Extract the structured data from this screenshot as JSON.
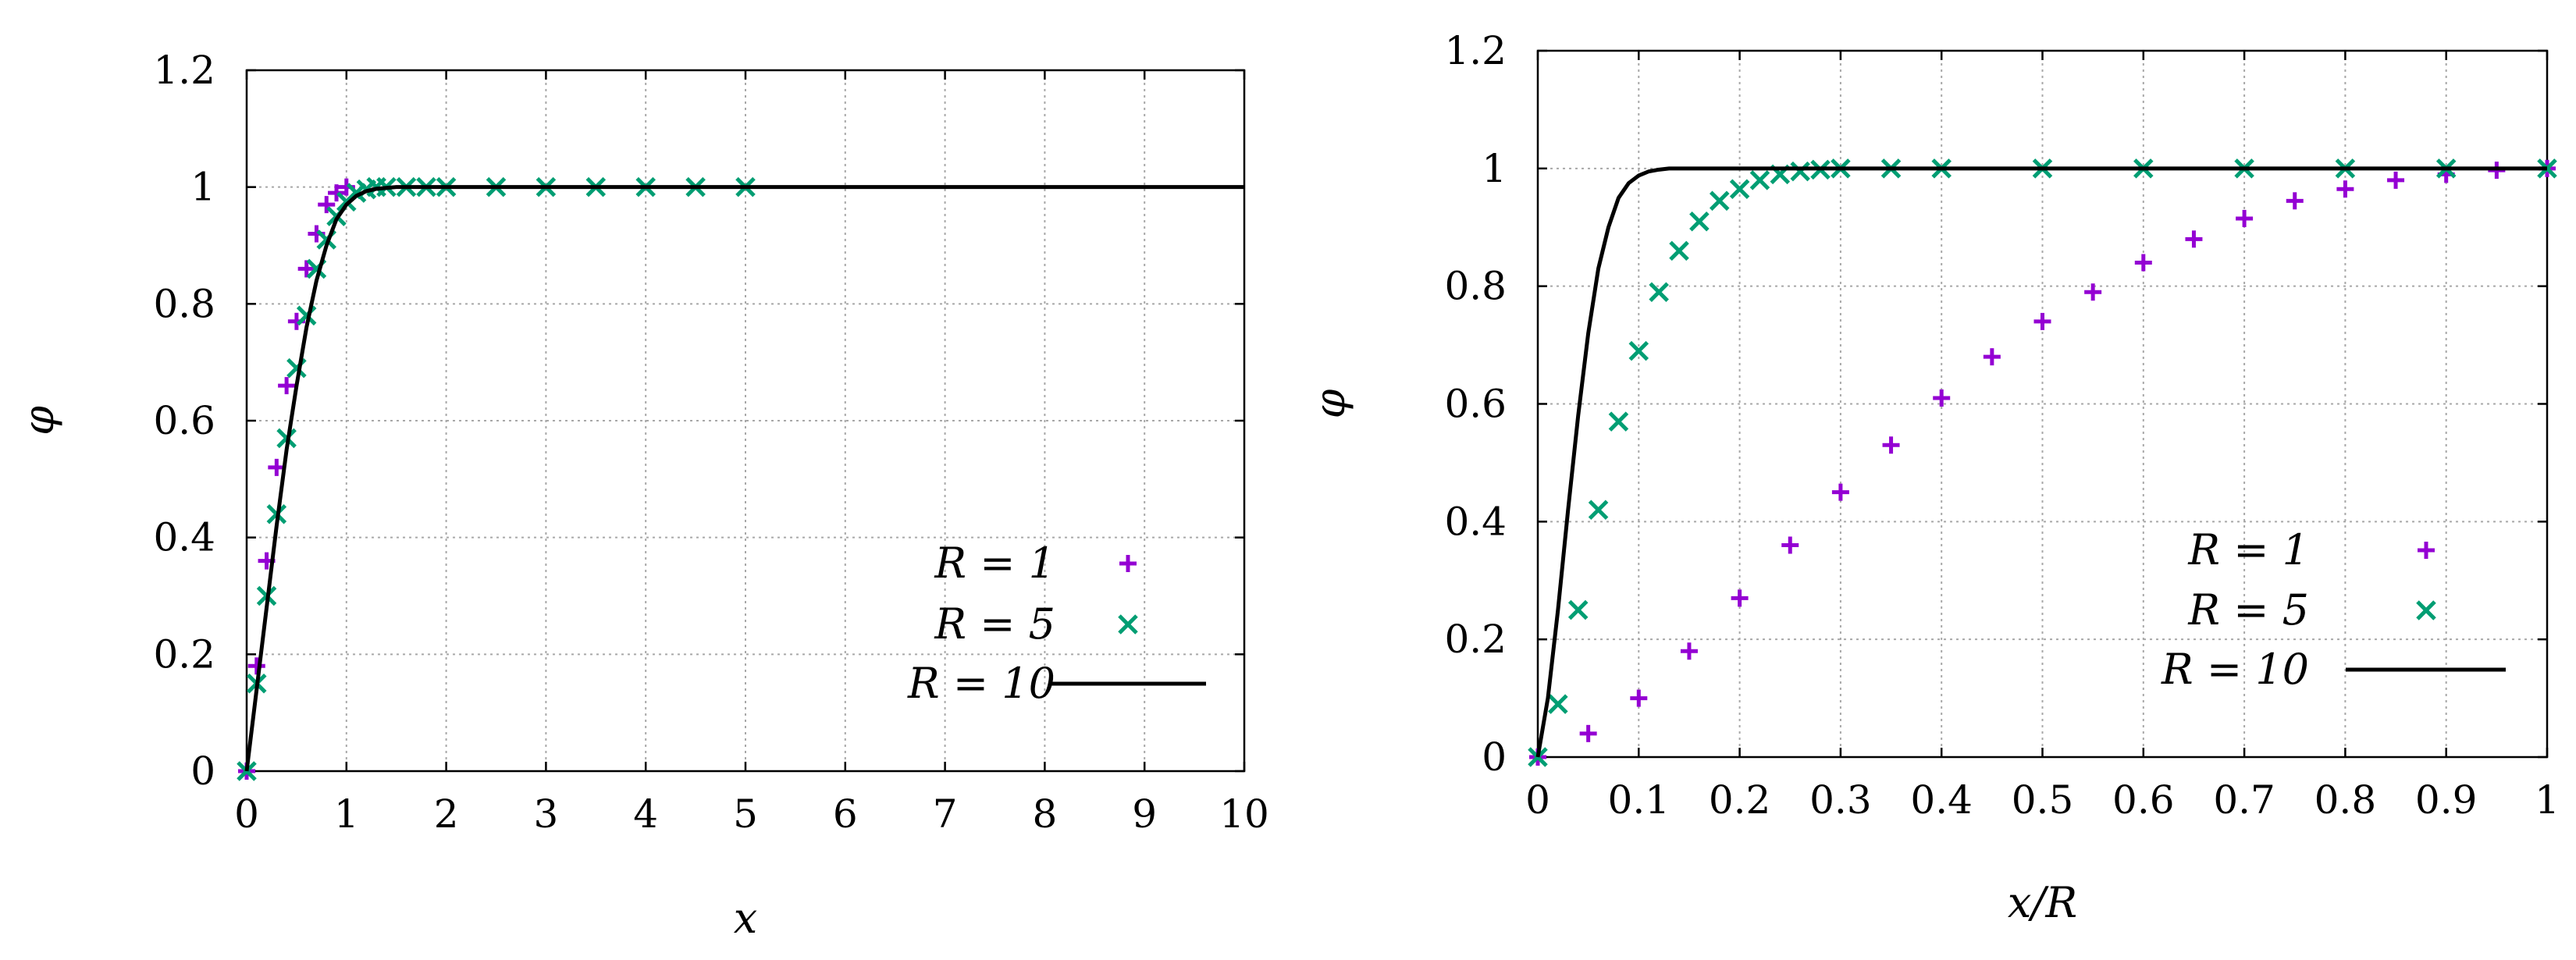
{
  "colors": {
    "series_r1": "#9400d3",
    "series_r5": "#009e73",
    "series_r10": "#000000"
  },
  "chart_data": [
    {
      "type": "scatter",
      "title": "",
      "xlabel": "x",
      "ylabel": "φ",
      "xlim": [
        0,
        10
      ],
      "ylim": [
        0,
        1.2
      ],
      "xticks": [
        0,
        1,
        2,
        3,
        4,
        5,
        6,
        7,
        8,
        9,
        10
      ],
      "yticks": [
        0,
        0.2,
        0.4,
        0.6,
        0.8,
        1,
        1.2
      ],
      "xtick_labels": [
        "0",
        "1",
        "2",
        "3",
        "4",
        "5",
        "6",
        "7",
        "8",
        "9",
        "10"
      ],
      "ytick_labels": [
        "0",
        "0.2",
        "0.4",
        "0.6",
        "0.8",
        "1",
        "1.2"
      ],
      "grid": true,
      "legend_position": "bottom-right",
      "series": [
        {
          "name": "R = 1",
          "marker": "plus",
          "color": "#9400d3",
          "x": [
            0,
            0.1,
            0.2,
            0.3,
            0.4,
            0.5,
            0.6,
            0.7,
            0.8,
            0.9,
            1.0
          ],
          "y": [
            0,
            0.18,
            0.36,
            0.52,
            0.66,
            0.77,
            0.86,
            0.92,
            0.97,
            0.99,
            1.0
          ]
        },
        {
          "name": "R = 5",
          "marker": "cross",
          "color": "#009e73",
          "x": [
            0,
            0.1,
            0.2,
            0.3,
            0.4,
            0.5,
            0.6,
            0.7,
            0.8,
            0.9,
            1.0,
            1.1,
            1.2,
            1.3,
            1.4,
            1.6,
            1.8,
            2.0,
            2.5,
            3.0,
            3.5,
            4.0,
            4.5,
            5.0
          ],
          "y": [
            0,
            0.15,
            0.3,
            0.44,
            0.57,
            0.69,
            0.78,
            0.86,
            0.91,
            0.95,
            0.975,
            0.99,
            0.996,
            1.0,
            1.0,
            1.0,
            1.0,
            1.0,
            1.0,
            1.0,
            1.0,
            1.0,
            1.0,
            1.0
          ]
        },
        {
          "name": "R = 10",
          "marker": "line",
          "color": "#000000",
          "x": [
            0,
            0.1,
            0.2,
            0.3,
            0.4,
            0.5,
            0.6,
            0.7,
            0.8,
            0.9,
            1.0,
            1.1,
            1.2,
            1.3,
            1.5,
            1.7,
            2.0,
            3.0,
            5.0,
            7.0,
            10.0
          ],
          "y": [
            0,
            0.14,
            0.28,
            0.42,
            0.55,
            0.66,
            0.76,
            0.84,
            0.9,
            0.945,
            0.97,
            0.985,
            0.993,
            0.997,
            1.0,
            1.0,
            1.0,
            1.0,
            1.0,
            1.0,
            1.0
          ]
        }
      ]
    },
    {
      "type": "scatter",
      "title": "",
      "xlabel": "x/R",
      "ylabel": "φ",
      "xlim": [
        0,
        1
      ],
      "ylim": [
        0,
        1.2
      ],
      "xticks": [
        0,
        0.1,
        0.2,
        0.3,
        0.4,
        0.5,
        0.6,
        0.7,
        0.8,
        0.9,
        1
      ],
      "yticks": [
        0,
        0.2,
        0.4,
        0.6,
        0.8,
        1,
        1.2
      ],
      "xtick_labels": [
        "0",
        "0.1",
        "0.2",
        "0.3",
        "0.4",
        "0.5",
        "0.6",
        "0.7",
        "0.8",
        "0.9",
        "1"
      ],
      "ytick_labels": [
        "0",
        "0.2",
        "0.4",
        "0.6",
        "0.8",
        "1",
        "1.2"
      ],
      "grid": true,
      "legend_position": "bottom-right",
      "series": [
        {
          "name": "R = 1",
          "marker": "plus",
          "color": "#9400d3",
          "x": [
            0,
            0.05,
            0.1,
            0.15,
            0.2,
            0.25,
            0.3,
            0.35,
            0.4,
            0.45,
            0.5,
            0.55,
            0.6,
            0.65,
            0.7,
            0.75,
            0.8,
            0.85,
            0.9,
            0.95,
            1.0
          ],
          "y": [
            0,
            0.04,
            0.1,
            0.18,
            0.27,
            0.36,
            0.45,
            0.53,
            0.61,
            0.68,
            0.74,
            0.79,
            0.84,
            0.88,
            0.915,
            0.945,
            0.965,
            0.98,
            0.99,
            0.997,
            1.0
          ]
        },
        {
          "name": "R = 5",
          "marker": "cross",
          "color": "#009e73",
          "x": [
            0,
            0.02,
            0.04,
            0.06,
            0.08,
            0.1,
            0.12,
            0.14,
            0.16,
            0.18,
            0.2,
            0.22,
            0.24,
            0.26,
            0.28,
            0.3,
            0.35,
            0.4,
            0.5,
            0.6,
            0.7,
            0.8,
            0.9,
            1.0
          ],
          "y": [
            0,
            0.09,
            0.25,
            0.42,
            0.57,
            0.69,
            0.79,
            0.86,
            0.91,
            0.945,
            0.965,
            0.98,
            0.99,
            0.995,
            0.998,
            1.0,
            1.0,
            1.0,
            1.0,
            1.0,
            1.0,
            1.0,
            1.0,
            1.0
          ]
        },
        {
          "name": "R = 10",
          "marker": "line",
          "color": "#000000",
          "x": [
            0,
            0.01,
            0.02,
            0.03,
            0.04,
            0.05,
            0.06,
            0.07,
            0.08,
            0.09,
            0.1,
            0.11,
            0.12,
            0.13,
            0.15,
            0.2,
            0.3,
            0.5,
            0.8,
            1.0
          ],
          "y": [
            0,
            0.1,
            0.25,
            0.42,
            0.58,
            0.72,
            0.83,
            0.9,
            0.95,
            0.975,
            0.988,
            0.995,
            0.998,
            1.0,
            1.0,
            1.0,
            1.0,
            1.0,
            1.0,
            1.0
          ]
        }
      ]
    }
  ]
}
